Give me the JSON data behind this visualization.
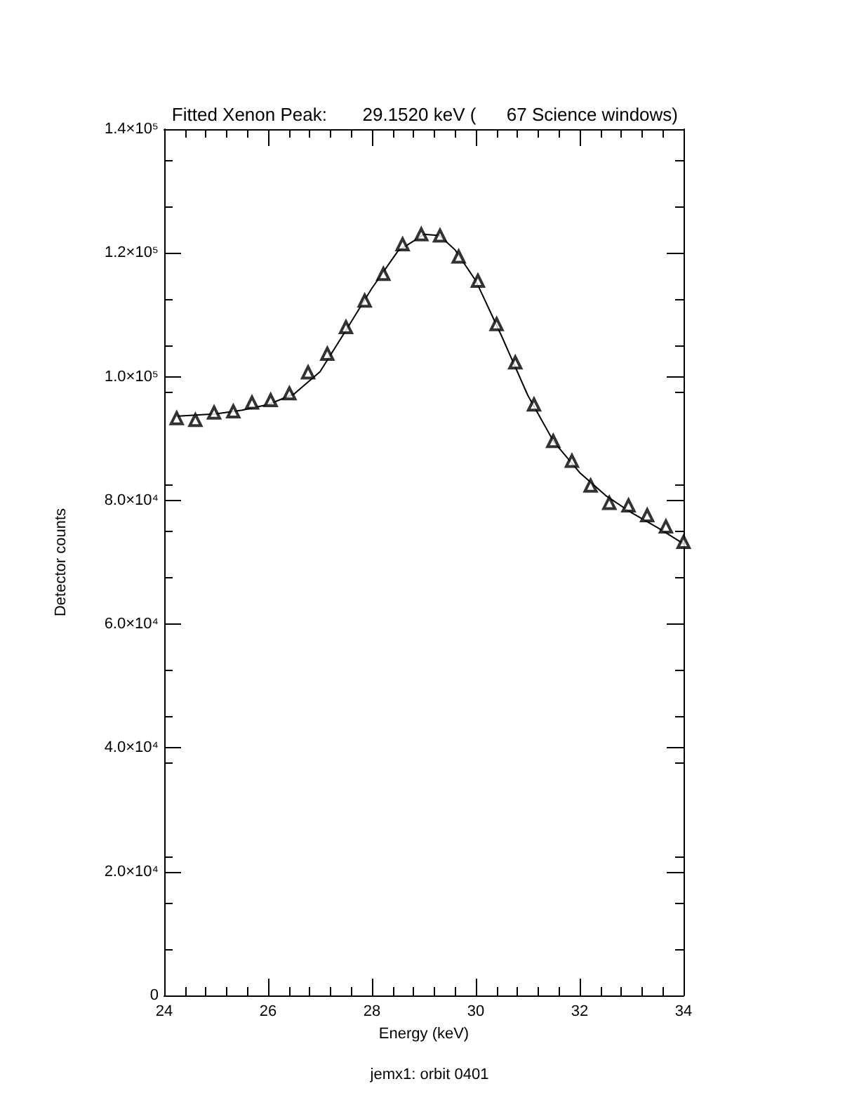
{
  "chart_data": {
    "type": "scatter",
    "title": "Fitted Xenon Peak:       29.1520 keV (      67 Science windows)",
    "xlabel": "Energy (keV)",
    "ylabel": "Detector counts",
    "annotations": [
      "jemx1: orbit 0401"
    ],
    "xlim": [
      24,
      34
    ],
    "xticks": [
      24,
      26,
      28,
      30,
      32,
      34
    ],
    "ylim": [
      0,
      140000
    ],
    "yticks": [
      {
        "value": 0,
        "label": "0"
      },
      {
        "value": 20000,
        "label": "2.0×10⁴"
      },
      {
        "value": 40000,
        "label": "4.0×10⁴"
      },
      {
        "value": 60000,
        "label": "6.0×10⁴"
      },
      {
        "value": 80000,
        "label": "8.0×10⁴"
      },
      {
        "value": 100000,
        "label": "1.0×10⁵"
      },
      {
        "value": 120000,
        "label": "1.2×10⁵"
      },
      {
        "value": 140000,
        "label": "1.4×10⁵"
      }
    ],
    "grid": false,
    "marker": "triangle",
    "series": [
      {
        "color": "#000000",
        "x": [
          24.24,
          24.6,
          24.96,
          25.33,
          25.69,
          26.05,
          26.41,
          26.77,
          27.14,
          27.5,
          27.86,
          28.22,
          28.59,
          28.95,
          29.31,
          29.67,
          30.04,
          30.4,
          30.76,
          31.12,
          31.49,
          31.85,
          32.21,
          32.57,
          32.94,
          33.3,
          33.66,
          34.0
        ],
        "values": [
          93300,
          93000,
          94200,
          94400,
          95800,
          96200,
          97300,
          100700,
          103700,
          108000,
          112300,
          116600,
          121400,
          123000,
          122800,
          119400,
          115500,
          108500,
          102300,
          95500,
          89600,
          86400,
          82400,
          79600,
          79200,
          77600,
          75800,
          73300
        ]
      },
      {
        "type": "line",
        "color": "#000000",
        "marker": "none",
        "line_style": "solid",
        "x": [
          24.24,
          25,
          25.5,
          26,
          26.5,
          27,
          27.5,
          28,
          28.5,
          29,
          29.3,
          29.6,
          30,
          30.5,
          31,
          31.5,
          32,
          32.5,
          33,
          33.5,
          34
        ],
        "values": [
          93600,
          94000,
          94600,
          95500,
          97200,
          100800,
          107500,
          114300,
          120300,
          123000,
          122800,
          120500,
          115500,
          106500,
          97000,
          89500,
          84500,
          80800,
          78000,
          75600,
          73000
        ]
      }
    ]
  }
}
